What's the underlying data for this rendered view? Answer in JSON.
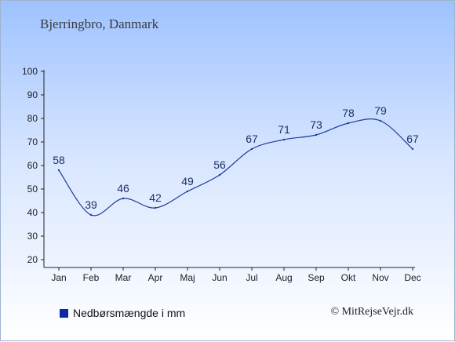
{
  "header": {
    "title": "Bjerringbro, Danmark"
  },
  "legend": {
    "label": "Nedbørsmængde i mm"
  },
  "footer": {
    "credit": "© MitRejseVejr.dk"
  },
  "colors": {
    "line": "#1f3c9e",
    "swatch": "#0b2aa8",
    "labels": "#1c2f66",
    "axis": "#222222"
  },
  "chart_data": {
    "type": "line",
    "categories": [
      "Jan",
      "Feb",
      "Mar",
      "Apr",
      "Maj",
      "Jun",
      "Jul",
      "Aug",
      "Sep",
      "Okt",
      "Nov",
      "Dec"
    ],
    "series": [
      {
        "name": "Nedbørsmængde i mm",
        "values": [
          58,
          39,
          46,
          42,
          49,
          56,
          67,
          71,
          73,
          78,
          79,
          67
        ]
      }
    ],
    "ylim": [
      20,
      100
    ],
    "yticks": [
      20,
      30,
      40,
      50,
      60,
      70,
      80,
      90,
      100
    ],
    "grid": false,
    "data_labels": true,
    "legend_position": "bottom-left"
  }
}
